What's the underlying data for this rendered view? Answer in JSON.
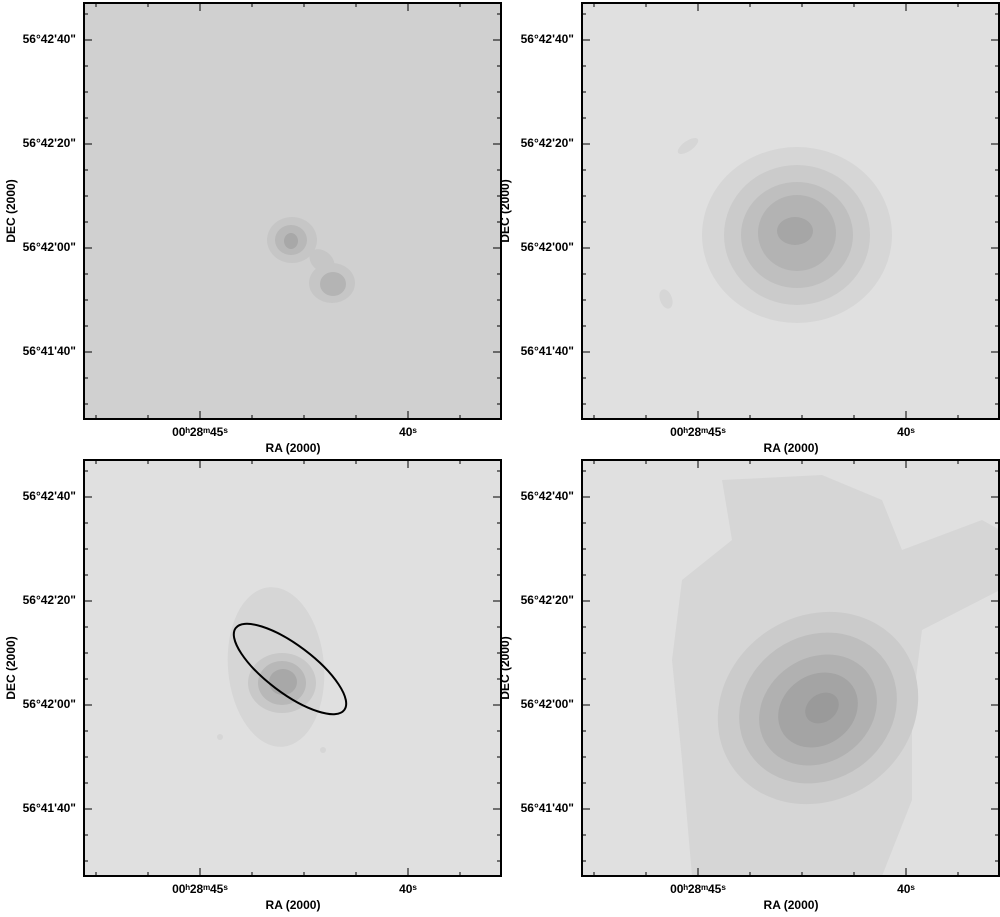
{
  "panels": [
    {
      "x_label": "RA (2000)",
      "y_label": "DEC (2000)",
      "x_tick_labels": [
        "00ʰ28ᵐ45ˢ",
        "40ˢ"
      ],
      "y_tick_labels": [
        "56°42'40\"",
        "56°42'20\"",
        "56°42'00\"",
        "56°41'40\""
      ]
    },
    {
      "x_label": "RA (2000)",
      "y_label": "DEC (2000)",
      "x_tick_labels": [
        "00ʰ28ᵐ45ˢ",
        "40ˢ"
      ],
      "y_tick_labels": [
        "56°42'40\"",
        "56°42'20\"",
        "56°42'00\"",
        "56°41'40\""
      ]
    },
    {
      "x_label": "RA (2000)",
      "y_label": "DEC (2000)",
      "x_tick_labels": [
        "00ʰ28ᵐ45ˢ",
        "40ˢ"
      ],
      "y_tick_labels": [
        "56°42'40\"",
        "56°42'20\"",
        "56°42'00\"",
        "56°41'40\""
      ]
    },
    {
      "x_label": "RA (2000)",
      "y_label": "DEC (2000)",
      "x_tick_labels": [
        "00ʰ28ᵐ45ˢ",
        "40ˢ"
      ],
      "y_tick_labels": [
        "56°42'40\"",
        "56°42'20\"",
        "56°42'00\"",
        "56°41'40\""
      ]
    }
  ]
}
